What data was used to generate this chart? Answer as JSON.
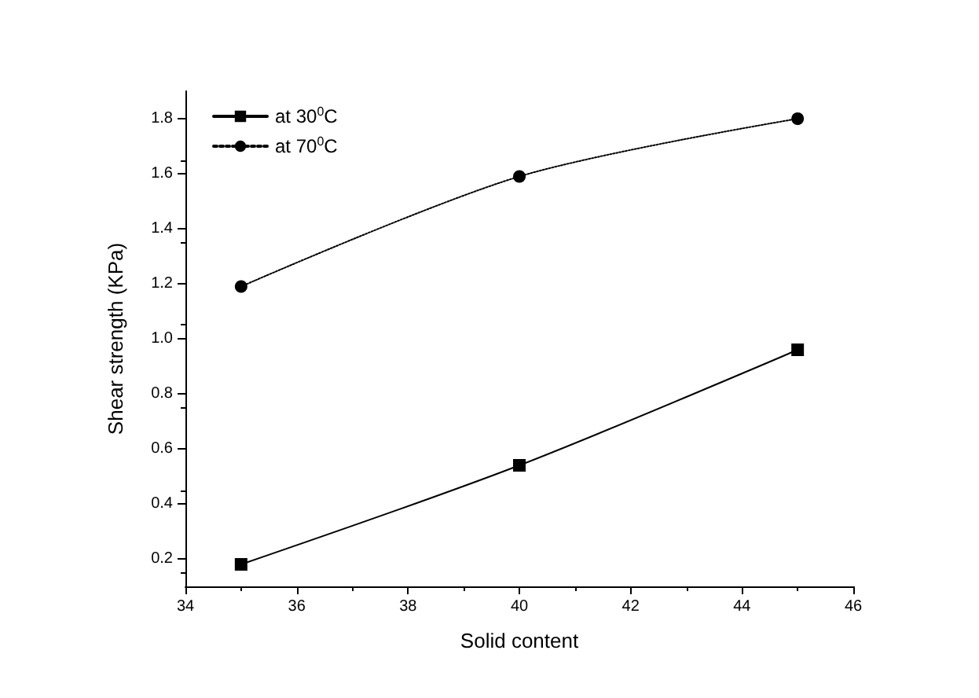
{
  "chart_data": {
    "type": "line",
    "xlabel": "Solid content",
    "ylabel": "Shear strength (KPa)",
    "x": [
      35,
      40,
      45
    ],
    "series": [
      {
        "name": "at 30$^{0}$C",
        "color": "#000000",
        "values": [
          0.18,
          0.54,
          0.96
        ],
        "marker": "square",
        "line_style": "solid"
      },
      {
        "name": "at 70$^{0}$C",
        "color": "#000000",
        "values": [
          1.19,
          1.59,
          1.8
        ],
        "marker": "circle",
        "line_style": "dotted"
      }
    ],
    "xlim": [
      34,
      46
    ],
    "xticks": [
      34,
      36,
      38,
      40,
      42,
      44,
      46
    ],
    "ylim": [
      0.1,
      1.9
    ],
    "yticks": [
      0.2,
      0.4,
      0.6,
      0.8,
      {
        "value": 1.0,
        "label": "1.0"
      },
      1.2,
      1.4,
      1.6,
      1.8
    ],
    "grid": false,
    "legend": "top left"
  }
}
